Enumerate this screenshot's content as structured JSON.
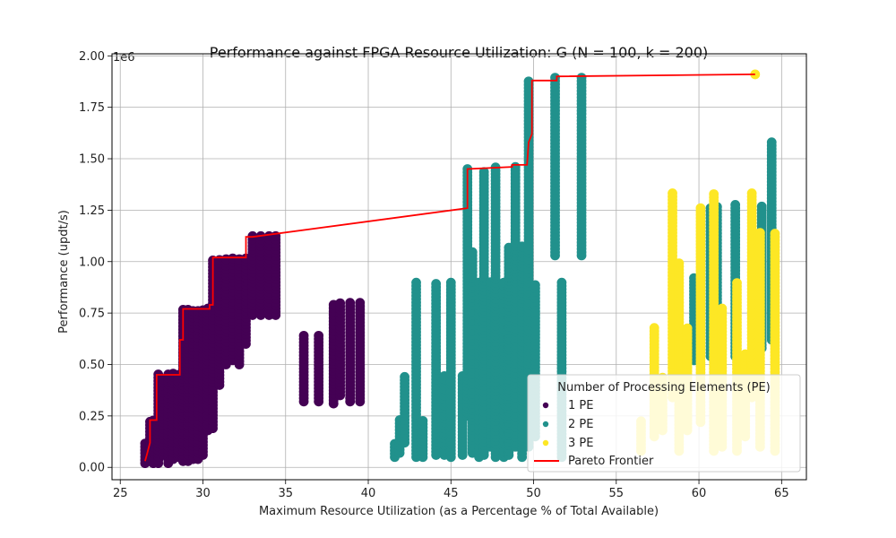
{
  "chart_data": {
    "type": "scatter",
    "title": "Performance against FPGA Resource Utilization: G (N = 100, k = 200)",
    "xlabel": "Maximum Resource Utilization (as a Percentage % of Total Available)",
    "ylabel": "Performance (updt/s)",
    "y_multiplier_label": "1e6",
    "xlim": [
      24.5,
      66.5
    ],
    "ylim": [
      -60000,
      2010000
    ],
    "xticks": [
      25,
      30,
      35,
      40,
      45,
      50,
      55,
      60,
      65
    ],
    "yticks": [
      0,
      250000,
      500000,
      750000,
      1000000,
      1250000,
      1500000,
      1750000,
      2000000
    ],
    "ytick_labels": [
      "0.00",
      "0.25",
      "0.50",
      "0.75",
      "1.00",
      "1.25",
      "1.50",
      "1.75",
      "2.00"
    ],
    "grid": true,
    "legend": {
      "title": "Number of Processing Elements (PE)",
      "position": "lower-right",
      "entries": [
        "1 PE",
        "2 PE",
        "3 PE",
        "Pareto Frontier"
      ]
    },
    "colors": {
      "1 PE": "#440154",
      "2 PE": "#21918c",
      "3 PE": "#fde725",
      "Pareto Frontier": "#ff0000"
    },
    "series": [
      {
        "name": "1 PE",
        "columns": [
          {
            "x": 26.5,
            "ymin": 20000,
            "ymax": 120000
          },
          {
            "x": 26.8,
            "ymin": 30000,
            "ymax": 230000
          },
          {
            "x": 27.0,
            "ymin": 20000,
            "ymax": 230000
          },
          {
            "x": 27.3,
            "ymin": 20000,
            "ymax": 460000
          },
          {
            "x": 27.6,
            "ymin": 60000,
            "ymax": 430000
          },
          {
            "x": 27.9,
            "ymin": 20000,
            "ymax": 460000
          },
          {
            "x": 28.2,
            "ymin": 40000,
            "ymax": 460000
          },
          {
            "x": 28.5,
            "ymin": 50000,
            "ymax": 460000
          },
          {
            "x": 28.8,
            "ymin": 30000,
            "ymax": 770000
          },
          {
            "x": 29.1,
            "ymin": 30000,
            "ymax": 780000
          },
          {
            "x": 29.4,
            "ymin": 40000,
            "ymax": 770000
          },
          {
            "x": 29.7,
            "ymin": 40000,
            "ymax": 770000
          },
          {
            "x": 30.0,
            "ymin": 60000,
            "ymax": 770000
          },
          {
            "x": 30.3,
            "ymin": 180000,
            "ymax": 780000
          },
          {
            "x": 30.6,
            "ymin": 190000,
            "ymax": 1020000
          },
          {
            "x": 31.0,
            "ymin": 400000,
            "ymax": 1020000
          },
          {
            "x": 31.4,
            "ymin": 500000,
            "ymax": 1020000
          },
          {
            "x": 31.8,
            "ymin": 520000,
            "ymax": 1020000
          },
          {
            "x": 32.2,
            "ymin": 500000,
            "ymax": 1020000
          },
          {
            "x": 32.6,
            "ymin": 600000,
            "ymax": 1020000
          },
          {
            "x": 33.0,
            "ymin": 740000,
            "ymax": 1130000
          },
          {
            "x": 33.5,
            "ymin": 740000,
            "ymax": 1130000
          },
          {
            "x": 34.0,
            "ymin": 740000,
            "ymax": 1130000
          },
          {
            "x": 34.4,
            "ymin": 740000,
            "ymax": 1130000
          },
          {
            "x": 36.1,
            "ymin": 320000,
            "ymax": 640000
          },
          {
            "x": 37.0,
            "ymin": 320000,
            "ymax": 640000
          },
          {
            "x": 37.9,
            "ymin": 310000,
            "ymax": 790000
          },
          {
            "x": 38.3,
            "ymin": 350000,
            "ymax": 800000
          },
          {
            "x": 38.9,
            "ymin": 320000,
            "ymax": 800000
          },
          {
            "x": 39.5,
            "ymin": 320000,
            "ymax": 800000
          }
        ]
      },
      {
        "name": "2 PE",
        "columns": [
          {
            "x": 41.6,
            "ymin": 50000,
            "ymax": 120000
          },
          {
            "x": 41.9,
            "ymin": 70000,
            "ymax": 230000
          },
          {
            "x": 42.2,
            "ymin": 120000,
            "ymax": 450000
          },
          {
            "x": 42.9,
            "ymin": 50000,
            "ymax": 900000
          },
          {
            "x": 43.3,
            "ymin": 50000,
            "ymax": 230000
          },
          {
            "x": 44.1,
            "ymin": 60000,
            "ymax": 900000
          },
          {
            "x": 44.6,
            "ymin": 60000,
            "ymax": 450000
          },
          {
            "x": 45.0,
            "ymin": 50000,
            "ymax": 900000
          },
          {
            "x": 45.7,
            "ymin": 60000,
            "ymax": 450000
          },
          {
            "x": 46.0,
            "ymin": 250000,
            "ymax": 1450000
          },
          {
            "x": 46.3,
            "ymin": 70000,
            "ymax": 1060000
          },
          {
            "x": 46.7,
            "ymin": 50000,
            "ymax": 900000
          },
          {
            "x": 47.0,
            "ymin": 60000,
            "ymax": 1450000
          },
          {
            "x": 47.4,
            "ymin": 100000,
            "ymax": 900000
          },
          {
            "x": 47.7,
            "ymin": 50000,
            "ymax": 1460000
          },
          {
            "x": 48.2,
            "ymin": 50000,
            "ymax": 900000
          },
          {
            "x": 48.5,
            "ymin": 60000,
            "ymax": 1080000
          },
          {
            "x": 48.9,
            "ymin": 100000,
            "ymax": 1460000
          },
          {
            "x": 49.3,
            "ymin": 50000,
            "ymax": 1080000
          },
          {
            "x": 49.7,
            "ymin": 100000,
            "ymax": 1880000
          },
          {
            "x": 50.1,
            "ymin": 150000,
            "ymax": 900000
          },
          {
            "x": 51.3,
            "ymin": 1030000,
            "ymax": 1900000
          },
          {
            "x": 51.7,
            "ymin": 50000,
            "ymax": 900000
          },
          {
            "x": 52.9,
            "ymin": 1030000,
            "ymax": 1900000
          },
          {
            "x": 59.7,
            "ymin": 520000,
            "ymax": 930000
          },
          {
            "x": 60.7,
            "ymin": 540000,
            "ymax": 1260000
          },
          {
            "x": 61.1,
            "ymin": 450000,
            "ymax": 1280000
          },
          {
            "x": 62.2,
            "ymin": 540000,
            "ymax": 1280000
          },
          {
            "x": 63.8,
            "ymin": 580000,
            "ymax": 1280000
          },
          {
            "x": 64.4,
            "ymin": 620000,
            "ymax": 1590000
          }
        ]
      },
      {
        "name": "3 PE",
        "columns": [
          {
            "x": 56.5,
            "ymin": 80000,
            "ymax": 230000
          },
          {
            "x": 57.3,
            "ymin": 150000,
            "ymax": 680000
          },
          {
            "x": 57.8,
            "ymin": 180000,
            "ymax": 450000
          },
          {
            "x": 58.4,
            "ymin": 340000,
            "ymax": 1340000
          },
          {
            "x": 58.8,
            "ymin": 80000,
            "ymax": 1000000
          },
          {
            "x": 59.3,
            "ymin": 180000,
            "ymax": 680000
          },
          {
            "x": 60.1,
            "ymin": 220000,
            "ymax": 1260000
          },
          {
            "x": 60.9,
            "ymin": 80000,
            "ymax": 1340000
          },
          {
            "x": 61.4,
            "ymin": 100000,
            "ymax": 780000
          },
          {
            "x": 62.3,
            "ymin": 80000,
            "ymax": 900000
          },
          {
            "x": 62.8,
            "ymin": 150000,
            "ymax": 560000
          },
          {
            "x": 63.2,
            "ymin": 340000,
            "ymax": 1340000
          },
          {
            "x": 63.7,
            "ymin": 100000,
            "ymax": 1140000
          },
          {
            "x": 64.6,
            "ymin": 80000,
            "ymax": 1150000
          }
        ]
      },
      {
        "name": "3 PE",
        "points": [
          [
            63.4,
            1910000
          ]
        ]
      }
    ],
    "pareto_frontier": {
      "name": "Pareto Frontier",
      "x": [
        26.5,
        26.6,
        26.8,
        26.8,
        27.2,
        27.2,
        28.6,
        28.6,
        28.8,
        28.8,
        30.4,
        30.4,
        30.6,
        30.6,
        32.6,
        32.6,
        33.0,
        46.0,
        46.0,
        48.7,
        48.7,
        49.6,
        49.7,
        49.9,
        49.9,
        51.4,
        51.4,
        63.4
      ],
      "y": [
        30000,
        60000,
        120000,
        230000,
        230000,
        450000,
        450000,
        620000,
        620000,
        770000,
        770000,
        790000,
        790000,
        1020000,
        1020000,
        1120000,
        1120000,
        1260000,
        1450000,
        1460000,
        1470000,
        1470000,
        1580000,
        1620000,
        1880000,
        1880000,
        1900000,
        1910000
      ]
    }
  }
}
